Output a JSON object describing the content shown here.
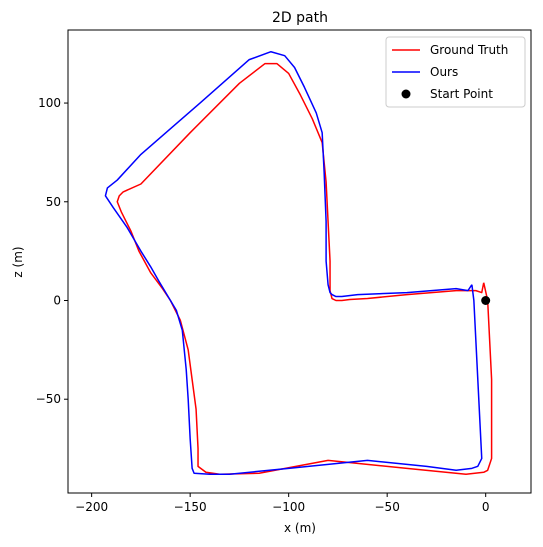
{
  "chart_data": {
    "type": "line",
    "title": "2D path",
    "xlabel": "x (m)",
    "ylabel": "z (m)",
    "xlim": [
      -212,
      23
    ],
    "ylim": [
      -97.5,
      137
    ],
    "xticks": [
      -200,
      -150,
      -100,
      -50,
      0
    ],
    "yticks": [
      -50,
      0,
      50,
      100
    ],
    "xtick_labels": [
      "−200",
      "−150",
      "−100",
      "−50",
      "0"
    ],
    "ytick_labels": [
      "−50",
      "0",
      "50",
      "100"
    ],
    "grid": false,
    "legend_position": "top-right",
    "series": [
      {
        "name": "Ground Truth",
        "color": "#ff0000",
        "x": [
          -1,
          1,
          2,
          3,
          3,
          3,
          2,
          1,
          -1,
          -10,
          -40,
          -80,
          -115,
          -135,
          -142,
          -146,
          -146,
          -147,
          -149,
          -151,
          -155,
          -160,
          -164,
          -170,
          -176,
          -180,
          -185,
          -187,
          -186,
          -184,
          -175,
          -150,
          -125,
          -112,
          -106,
          -100,
          -94,
          -88,
          -83,
          -81,
          -80,
          -79,
          -79,
          -78,
          -76,
          -73,
          -69,
          -60,
          -40,
          -15,
          -5,
          -2,
          -1
        ],
        "y": [
          9,
          0,
          -20,
          -40,
          -60,
          -80,
          -83,
          -86,
          -87,
          -88,
          -85,
          -81,
          -87.5,
          -88,
          -87,
          -84,
          -75,
          -55,
          -40,
          -25,
          -10,
          0,
          6,
          14,
          25,
          35,
          45,
          50,
          53,
          55,
          59,
          85,
          110,
          120,
          120,
          115,
          104,
          92,
          80,
          60,
          40,
          20,
          5,
          1,
          0,
          0,
          0.5,
          1,
          3,
          5,
          5,
          4,
          9
        ]
      },
      {
        "name": "Ours",
        "color": "#0000ff",
        "x": [
          -7,
          -6,
          -5,
          -4,
          -3,
          -2,
          -4,
          -7,
          -15,
          -30,
          -60,
          -100,
          -130,
          -140,
          -148,
          -149,
          -150,
          -151,
          -152,
          -154,
          -157,
          -160,
          -166,
          -170,
          -175,
          -182,
          -189,
          -193,
          -192,
          -187,
          -175,
          -145,
          -120,
          -109,
          -102,
          -97,
          -92,
          -86,
          -83,
          -82,
          -81,
          -81,
          -80,
          -79,
          -78,
          -76,
          -73,
          -65,
          -40,
          -15,
          -9,
          -7
        ],
        "y": [
          8,
          0,
          -20,
          -40,
          -60,
          -80,
          -84,
          -85,
          -86,
          -84,
          -81,
          -85,
          -88,
          -88,
          -87.5,
          -85,
          -70,
          -50,
          -35,
          -15,
          -5,
          0,
          10,
          17,
          25,
          37,
          47,
          53,
          57,
          61,
          74,
          100,
          122,
          126,
          124,
          118,
          108,
          95,
          85,
          65,
          40,
          20,
          8,
          4,
          3,
          2,
          2,
          3,
          4,
          6,
          5,
          8
        ]
      }
    ],
    "start_point": {
      "name": "Start Point",
      "x": 0,
      "y": 0,
      "color": "#000000"
    }
  }
}
